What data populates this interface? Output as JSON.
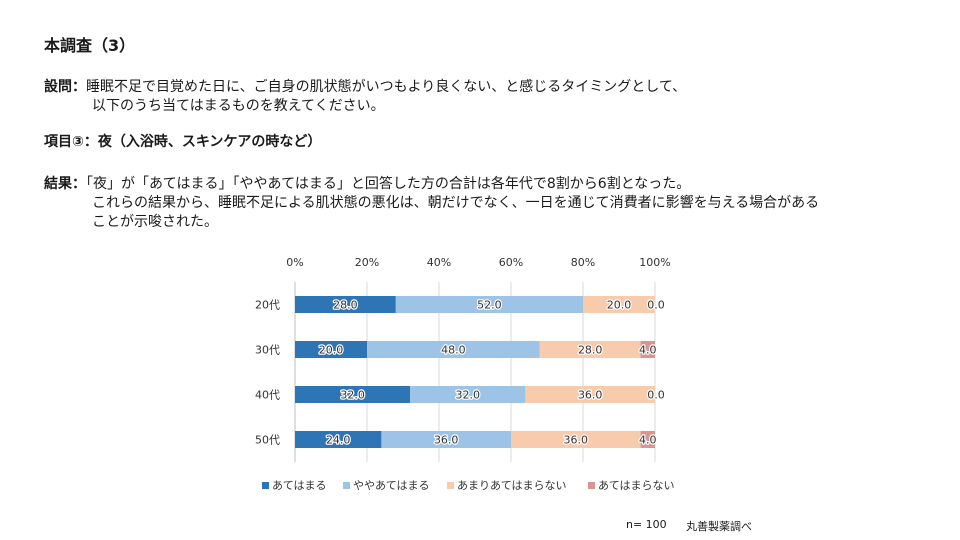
{
  "title": "本調査（3）",
  "question": {
    "label": "設問：",
    "line1": "睡眠不足で目覚めた日に、ご自身の肌状態がいつもより良くない、と感じるタイミングとして、",
    "line2": "以下のうち当てはまるものを教えてください。"
  },
  "item": "項目③：夜（入浴時、スキンケアの時など）",
  "result": {
    "label": "結果：",
    "line1": "「夜」が「あてはまる」「ややあてはまる」と回答した方の合計は各年代で8割から6割となった。",
    "line2": "これらの結果から、睡眠不足による肌状態の悪化は、朝だけでなく、一日を通じて消費者に影響を与える場合がある",
    "line3": "ことが示唆された。"
  },
  "chart_data": {
    "type": "bar",
    "orientation": "horizontal",
    "stacked": "percent",
    "categories": [
      "20代",
      "30代",
      "40代",
      "50代"
    ],
    "series": [
      {
        "name": "あてはまる",
        "values": [
          28.0,
          20.0,
          32.0,
          24.0
        ],
        "color": "#2e75b6"
      },
      {
        "name": "ややあてはまる",
        "values": [
          52.0,
          48.0,
          32.0,
          36.0
        ],
        "color": "#9dc3e6"
      },
      {
        "name": "あまりあてはまらない",
        "values": [
          20.0,
          28.0,
          36.0,
          36.0
        ],
        "color": "#f8cbad"
      },
      {
        "name": "あてはまらない",
        "values": [
          0.0,
          4.0,
          0.0,
          4.0
        ],
        "color": "#d99594"
      }
    ],
    "value_labels": [
      [
        "28.0",
        "52.0",
        "20.0",
        "0.0"
      ],
      [
        "20.0",
        "48.0",
        "28.0",
        "4.0"
      ],
      [
        "32.0",
        "32.0",
        "36.0",
        "0.0"
      ],
      [
        "24.0",
        "36.0",
        "36.0",
        "4.0"
      ]
    ],
    "xlim": [
      0,
      100
    ],
    "x_ticks": [
      "0%",
      "20%",
      "40%",
      "60%",
      "80%",
      "100%"
    ],
    "legend_position": "bottom",
    "grid": true
  },
  "footer": {
    "sample": "n= 100",
    "source": "丸善製薬調べ"
  }
}
